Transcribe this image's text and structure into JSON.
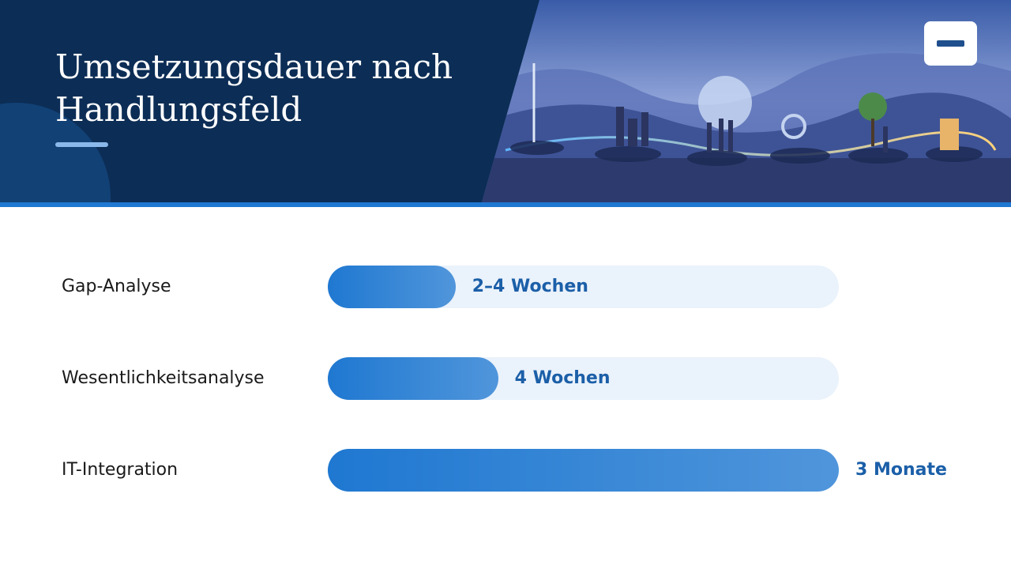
{
  "chart_data": {
    "type": "bar",
    "orientation": "horizontal",
    "title": "Umsetzungsdauer nach Handlungsfeld",
    "categories": [
      "Gap-Analyse",
      "Wesentlichkeitsanalyse",
      "IT-Integration"
    ],
    "values": [
      3,
      4,
      12
    ],
    "value_labels": [
      "2–4 Wochen",
      "4 Wochen",
      "3 Monate"
    ],
    "xlim": [
      0,
      12
    ],
    "color": "#1f78d1"
  }
}
